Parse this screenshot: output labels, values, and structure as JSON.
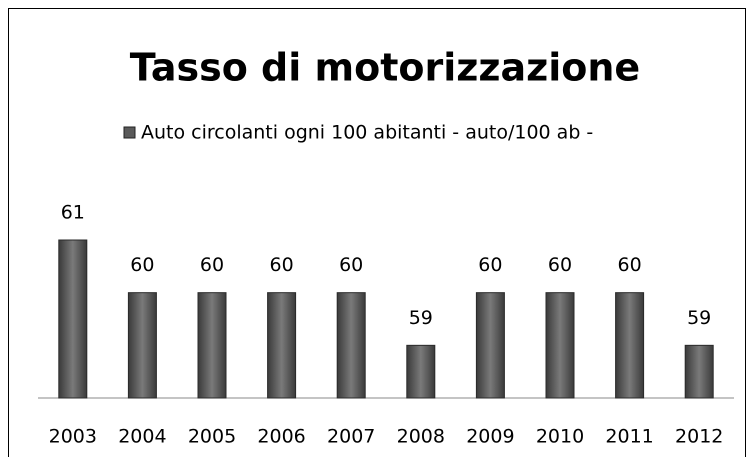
{
  "chart_data": {
    "type": "bar",
    "title": "Tasso di motorizzazione",
    "categories": [
      "2003",
      "2004",
      "2005",
      "2006",
      "2007",
      "2008",
      "2009",
      "2010",
      "2011",
      "2012"
    ],
    "series": [
      {
        "name": "Auto circolanti ogni 100 abitanti - auto/100 ab -",
        "color": "#5a5a5a",
        "values": [
          61,
          60,
          60,
          60,
          60,
          59,
          60,
          60,
          60,
          59
        ]
      }
    ],
    "ylim": [
      58,
      61
    ],
    "legend": "top"
  }
}
